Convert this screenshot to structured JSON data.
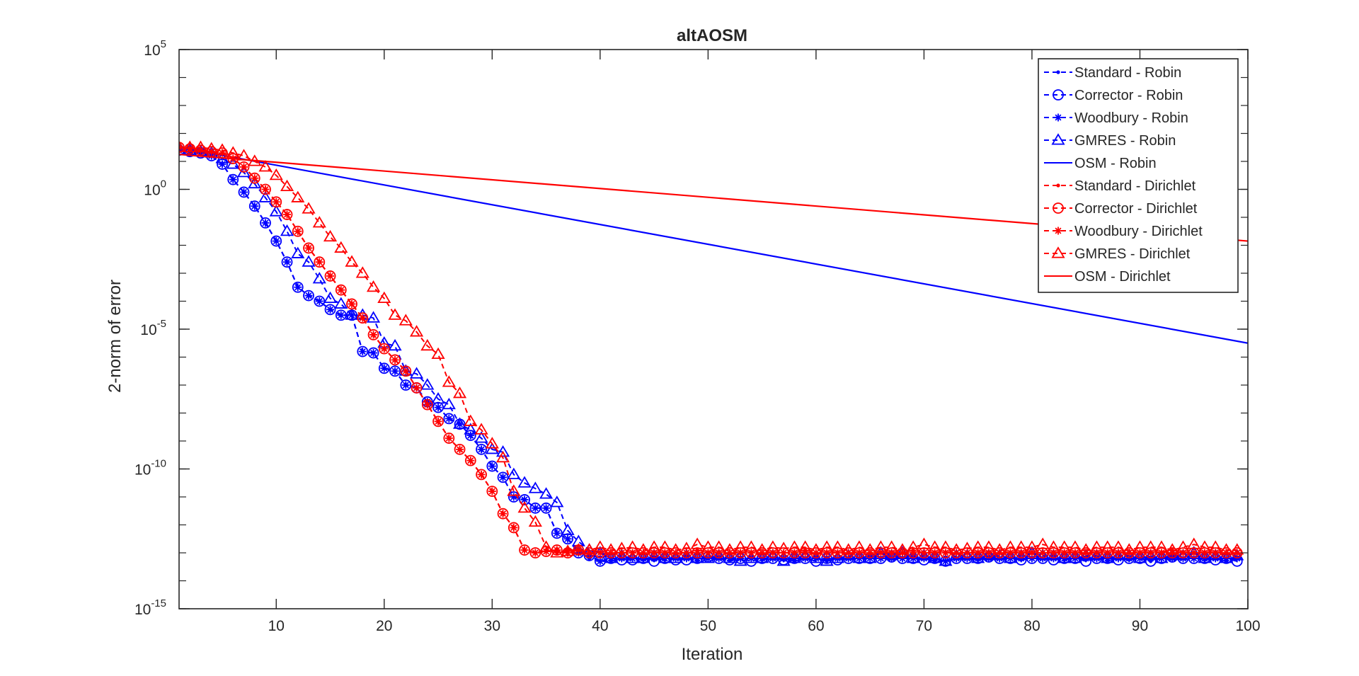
{
  "chart_data": {
    "type": "line",
    "title": "altAOSM",
    "xlabel": "Iteration",
    "ylabel": "2-norm of error",
    "xlim": [
      1,
      100
    ],
    "ylim_exponents": [
      -15,
      5
    ],
    "yscale": "log",
    "xticks": [
      "10",
      "20",
      "30",
      "40",
      "50",
      "60",
      "70",
      "80",
      "90",
      "100"
    ],
    "yticks": [
      {
        "base": "10",
        "exp": "-15"
      },
      {
        "base": "10",
        "exp": "-10"
      },
      {
        "base": "10",
        "exp": "-5"
      },
      {
        "base": "10",
        "exp": "0"
      },
      {
        "base": "10",
        "exp": "5"
      }
    ],
    "grid": false,
    "legend_position": "top-right",
    "colors": {
      "robin": "#0000ff",
      "dirichlet": "#ff0000",
      "axis": "#262626"
    },
    "series": [
      {
        "name": "Standard - Robin",
        "color": "#0000ff",
        "dash": true,
        "marker": "dot",
        "log10_y": [
          1.4,
          1.35,
          1.3,
          1.2,
          0.9,
          0.35,
          -0.1,
          -0.6,
          -1.2,
          -1.85,
          -2.6,
          -3.5,
          -3.8,
          -4.0,
          -4.3,
          -4.5,
          -4.5,
          -5.8,
          -5.85,
          -6.4,
          -6.5,
          -7.0,
          -7.1,
          -7.6,
          -7.8,
          -8.2,
          -8.4,
          -8.8,
          -9.3,
          -9.9,
          -10.3,
          -11.0,
          -11.1,
          -11.4,
          -11.4,
          -12.3,
          -12.5,
          -12.9,
          -13.2,
          -13.3,
          -13.3,
          -13.2,
          -13.2,
          -13.25,
          -13.2,
          -13.25,
          -13.2,
          -13.2,
          -13.3,
          -13.2,
          -13.2,
          -13.3,
          -13.2,
          -13.2,
          -13.25,
          -13.2,
          -13.2,
          -13.3,
          -13.2,
          -13.2,
          -13.3,
          -13.2,
          -13.2,
          -13.2,
          -13.1,
          -13.2,
          -13.2,
          -13.2,
          -13.15,
          -13.2,
          -13.3,
          -13.3,
          -13.2,
          -13.2,
          -13.25,
          -13.2,
          -13.2,
          -13.2,
          -13.25,
          -13.2,
          -13.2,
          -13.2,
          -13.25,
          -13.2,
          -13.25,
          -13.2,
          -13.3,
          -13.2,
          -13.25,
          -13.2,
          -13.3,
          -13.2,
          -13.1,
          -13.2,
          -13.2,
          -13.25,
          -13.2,
          -13.3,
          -13.2
        ]
      },
      {
        "name": "Corrector - Robin",
        "color": "#0000ff",
        "dash": true,
        "marker": "circle",
        "log10_y": [
          1.4,
          1.35,
          1.3,
          1.2,
          0.9,
          0.35,
          -0.1,
          -0.6,
          -1.2,
          -1.85,
          -2.6,
          -3.5,
          -3.8,
          -4.0,
          -4.3,
          -4.5,
          -4.5,
          -5.8,
          -5.85,
          -6.4,
          -6.5,
          -7.0,
          -7.1,
          -7.6,
          -7.8,
          -8.2,
          -8.4,
          -8.8,
          -9.3,
          -9.9,
          -10.3,
          -11.0,
          -11.1,
          -11.4,
          -11.4,
          -12.3,
          -12.5,
          -13.0,
          -13.1,
          -13.3,
          -13.2,
          -13.25,
          -13.25,
          -13.2,
          -13.3,
          -13.2,
          -13.25,
          -13.25,
          -13.2,
          -13.15,
          -13.2,
          -13.25,
          -13.2,
          -13.3,
          -13.2,
          -13.2,
          -13.25,
          -13.2,
          -13.2,
          -13.3,
          -13.2,
          -13.25,
          -13.2,
          -13.2,
          -13.2,
          -13.2,
          -13.15,
          -13.2,
          -13.2,
          -13.25,
          -13.2,
          -13.3,
          -13.2,
          -13.2,
          -13.2,
          -13.15,
          -13.2,
          -13.2,
          -13.25,
          -13.2,
          -13.2,
          -13.25,
          -13.2,
          -13.2,
          -13.3,
          -13.2,
          -13.2,
          -13.25,
          -13.2,
          -13.2,
          -13.3,
          -13.2,
          -13.15,
          -13.2,
          -13.2,
          -13.2,
          -13.25,
          -13.2,
          -13.3
        ]
      },
      {
        "name": "Woodbury - Robin",
        "color": "#0000ff",
        "dash": true,
        "marker": "star",
        "log10_y": [
          1.4,
          1.35,
          1.3,
          1.2,
          0.9,
          0.35,
          -0.1,
          -0.6,
          -1.2,
          -1.85,
          -2.6,
          -3.5,
          -3.8,
          -4.0,
          -4.3,
          -4.5,
          -4.5,
          -5.8,
          -5.85,
          -6.4,
          -6.5,
          -7.0,
          -7.1,
          -7.6,
          -7.8,
          -8.2,
          -8.4,
          -8.8,
          -9.3,
          -9.9,
          -10.3,
          -11.0,
          -11.1,
          -11.4,
          -11.4,
          -12.3,
          -12.5,
          -13.0,
          -13.1,
          -13.3,
          -13.2,
          -13.2,
          -13.2,
          -13.2,
          -13.2,
          -13.2,
          -13.2,
          -13.2,
          -13.2,
          -13.2,
          -13.2,
          -13.2,
          -13.2,
          -13.2,
          -13.2,
          -13.2,
          -13.2,
          -13.2,
          -13.2,
          -13.2,
          -13.2,
          -13.2,
          -13.2,
          -13.2,
          -13.2,
          -13.2,
          -13.2,
          -13.2,
          -13.2,
          -13.2,
          -13.2,
          -13.3,
          -13.2,
          -13.2,
          -13.2,
          -13.2,
          -13.2,
          -13.2,
          -13.2,
          -13.2,
          -13.2,
          -13.2,
          -13.2,
          -13.2,
          -13.2,
          -13.2,
          -13.2,
          -13.2,
          -13.2,
          -13.2,
          -13.2,
          -13.2,
          -13.2,
          -13.2,
          -13.2,
          -13.2,
          -13.2,
          -13.2,
          -13.2
        ]
      },
      {
        "name": "GMRES - Robin",
        "color": "#0000ff",
        "dash": true,
        "marker": "triangle",
        "log10_y": [
          1.4,
          1.4,
          1.35,
          1.3,
          1.1,
          0.9,
          0.6,
          0.2,
          -0.3,
          -0.8,
          -1.5,
          -2.3,
          -2.6,
          -3.2,
          -3.9,
          -4.1,
          -4.5,
          -4.5,
          -4.6,
          -5.5,
          -5.6,
          -6.5,
          -6.6,
          -7.0,
          -7.5,
          -7.7,
          -8.4,
          -8.6,
          -8.9,
          -9.3,
          -9.4,
          -10.2,
          -10.5,
          -10.7,
          -10.9,
          -11.2,
          -12.2,
          -12.6,
          -12.9,
          -13.0,
          -13.2,
          -13.1,
          -13.2,
          -13.2,
          -13.1,
          -13.2,
          -13.2,
          -13.1,
          -13.2,
          -13.2,
          -13.1,
          -13.2,
          -13.3,
          -13.2,
          -13.2,
          -13.1,
          -13.3,
          -13.2,
          -13.1,
          -13.2,
          -13.3,
          -13.2,
          -13.1,
          -13.2,
          -13.2,
          -13.0,
          -13.1,
          -13.0,
          -13.2,
          -13.1,
          -13.2,
          -13.3,
          -13.1,
          -13.1,
          -13.2,
          -13.1,
          -13.1,
          -13.2,
          -13.1,
          -13.0,
          -13.1,
          -13.1,
          -13.2,
          -13.2,
          -13.1,
          -13.1,
          -13.2,
          -13.1,
          -13.1,
          -13.2,
          -13.1,
          -13.2,
          -13.1,
          -13.1,
          -13.0,
          -13.2,
          -13.1,
          -13.2,
          -13.1
        ]
      },
      {
        "name": "OSM - Robin",
        "color": "#0000ff",
        "dash": false,
        "marker": "none",
        "line": [
          [
            1,
            1.5
          ],
          [
            100,
            -5.5
          ]
        ]
      },
      {
        "name": "Standard - Dirichlet",
        "color": "#ff0000",
        "dash": true,
        "marker": "dot",
        "log10_y": [
          1.5,
          1.45,
          1.4,
          1.35,
          1.3,
          1.1,
          0.8,
          0.4,
          0.0,
          -0.45,
          -0.9,
          -1.5,
          -2.1,
          -2.6,
          -3.1,
          -3.6,
          -4.1,
          -4.6,
          -5.2,
          -5.7,
          -6.1,
          -6.5,
          -7.1,
          -7.7,
          -8.3,
          -8.9,
          -9.3,
          -9.7,
          -10.2,
          -10.8,
          -11.6,
          -12.1,
          -12.9,
          -13.0,
          -12.9,
          -13.0,
          -12.9,
          -12.9,
          -13.0,
          -13.0,
          -13.0,
          -13.0,
          -13.0,
          -13.0,
          -13.0,
          -13.0,
          -13.0,
          -13.0,
          -12.9,
          -13.0,
          -13.0,
          -13.0,
          -13.0,
          -13.0,
          -13.0,
          -13.0,
          -13.0,
          -13.0,
          -12.9,
          -13.0,
          -13.0,
          -13.0,
          -13.0,
          -13.0,
          -13.0,
          -13.0,
          -13.0,
          -13.0,
          -12.9,
          -13.0,
          -13.0,
          -13.0,
          -13.0,
          -13.0,
          -13.0,
          -13.0,
          -13.0,
          -13.0,
          -13.0,
          -13.0,
          -13.0,
          -13.0,
          -13.0,
          -13.0,
          -13.0,
          -13.0,
          -13.0,
          -13.0,
          -13.0,
          -13.0,
          -13.0,
          -13.0,
          -12.9,
          -13.0,
          -13.0,
          -13.0,
          -13.0,
          -13.0,
          -13.0
        ]
      },
      {
        "name": "Corrector - Dirichlet",
        "color": "#ff0000",
        "dash": true,
        "marker": "circle",
        "log10_y": [
          1.5,
          1.45,
          1.4,
          1.35,
          1.3,
          1.1,
          0.8,
          0.4,
          0.0,
          -0.45,
          -0.9,
          -1.5,
          -2.1,
          -2.6,
          -3.1,
          -3.6,
          -4.1,
          -4.6,
          -5.2,
          -5.7,
          -6.1,
          -6.5,
          -7.1,
          -7.7,
          -8.3,
          -8.9,
          -9.3,
          -9.7,
          -10.2,
          -10.8,
          -11.6,
          -12.1,
          -12.9,
          -13.0,
          -12.95,
          -12.9,
          -13.0,
          -12.9,
          -13.0,
          -13.0,
          -13.0,
          -13.0,
          -13.0,
          -13.0,
          -13.0,
          -13.0,
          -13.0,
          -13.0,
          -13.0,
          -13.0,
          -13.0,
          -13.0,
          -13.0,
          -13.0,
          -13.0,
          -13.0,
          -13.0,
          -13.0,
          -13.0,
          -13.0,
          -13.0,
          -13.0,
          -13.0,
          -13.0,
          -13.0,
          -13.0,
          -13.0,
          -13.0,
          -13.0,
          -13.0,
          -13.0,
          -13.0,
          -13.0,
          -13.0,
          -13.0,
          -13.0,
          -13.0,
          -13.0,
          -13.0,
          -13.0,
          -13.0,
          -13.0,
          -13.0,
          -13.0,
          -13.0,
          -13.0,
          -13.0,
          -13.0,
          -13.0,
          -13.0,
          -13.0,
          -13.0,
          -13.0,
          -13.0,
          -13.0,
          -13.0,
          -13.0,
          -13.0,
          -13.0
        ]
      },
      {
        "name": "Woodbury - Dirichlet",
        "color": "#ff0000",
        "dash": true,
        "marker": "star",
        "log10_y": [
          1.5,
          1.45,
          1.4,
          1.35,
          1.3,
          1.1,
          0.8,
          0.4,
          0.0,
          -0.45,
          -0.9,
          -1.5,
          -2.1,
          -2.6,
          -3.1,
          -3.6,
          -4.1,
          -4.6,
          -5.2,
          -5.7,
          -6.1,
          -6.5,
          -7.1,
          -7.7,
          -8.3,
          -8.9,
          -9.3,
          -9.7,
          -10.2,
          -10.8,
          -11.6,
          -12.1,
          -12.9,
          -13.0,
          -12.95,
          -12.9,
          -13.0,
          -12.9,
          -13.0,
          -13.0,
          -13.0,
          -13.0,
          -13.0,
          -13.0,
          -13.0,
          -13.0,
          -13.0,
          -13.0,
          -13.0,
          -13.0,
          -13.0,
          -13.0,
          -13.0,
          -13.0,
          -13.0,
          -13.0,
          -13.0,
          -13.0,
          -13.0,
          -13.0,
          -13.0,
          -13.0,
          -13.0,
          -13.0,
          -13.0,
          -13.0,
          -13.0,
          -13.0,
          -13.0,
          -13.0,
          -13.0,
          -13.0,
          -13.0,
          -13.0,
          -13.0,
          -13.0,
          -13.0,
          -13.0,
          -13.0,
          -13.0,
          -13.0,
          -13.0,
          -13.0,
          -13.0,
          -13.0,
          -13.0,
          -13.0,
          -13.0,
          -13.0,
          -13.0,
          -13.0,
          -13.0,
          -13.0,
          -13.0,
          -13.0,
          -13.0,
          -13.0,
          -13.0,
          -13.0
        ]
      },
      {
        "name": "GMRES - Dirichlet",
        "color": "#ff0000",
        "dash": true,
        "marker": "triangle",
        "log10_y": [
          1.5,
          1.5,
          1.5,
          1.45,
          1.4,
          1.3,
          1.2,
          1.0,
          0.8,
          0.5,
          0.1,
          -0.3,
          -0.7,
          -1.2,
          -1.7,
          -2.1,
          -2.6,
          -3.0,
          -3.5,
          -3.9,
          -4.5,
          -4.7,
          -5.1,
          -5.6,
          -5.9,
          -6.9,
          -7.3,
          -8.3,
          -8.6,
          -9.1,
          -9.6,
          -10.8,
          -11.4,
          -11.9,
          -12.8,
          -13.0,
          -12.95,
          -12.9,
          -12.9,
          -12.8,
          -12.9,
          -12.85,
          -12.8,
          -12.9,
          -12.8,
          -12.8,
          -12.9,
          -12.85,
          -12.7,
          -12.8,
          -12.8,
          -12.9,
          -12.8,
          -12.8,
          -12.9,
          -12.8,
          -12.85,
          -12.8,
          -12.8,
          -12.9,
          -12.8,
          -12.8,
          -12.9,
          -12.8,
          -12.9,
          -12.8,
          -12.8,
          -12.9,
          -12.8,
          -12.7,
          -12.8,
          -12.8,
          -12.9,
          -12.85,
          -12.8,
          -12.8,
          -12.9,
          -12.8,
          -12.8,
          -12.8,
          -12.7,
          -12.8,
          -12.8,
          -12.8,
          -12.9,
          -12.8,
          -12.8,
          -12.8,
          -12.9,
          -12.8,
          -12.8,
          -12.8,
          -12.9,
          -12.8,
          -12.7,
          -12.8,
          -12.8,
          -12.9,
          -12.9
        ]
      },
      {
        "name": "OSM - Dirichlet",
        "color": "#ff0000",
        "dash": false,
        "marker": "none",
        "line": [
          [
            1,
            1.25
          ],
          [
            100,
            -1.85
          ]
        ]
      }
    ]
  }
}
